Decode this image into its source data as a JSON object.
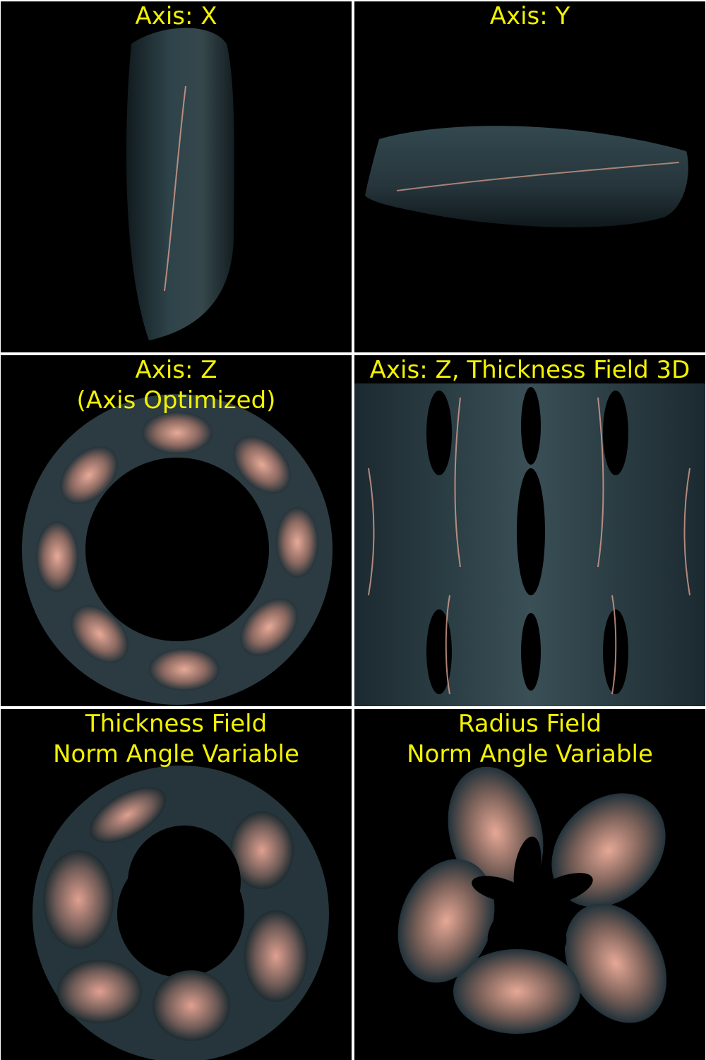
{
  "colors": {
    "background": "#000000",
    "divider": "#ffffff",
    "caption": "#f2f200",
    "surface_dark": "#23333a",
    "surface_light": "#e8aa98"
  },
  "panels": [
    {
      "caption_lines": [
        "Axis: X"
      ]
    },
    {
      "caption_lines": [
        "Axis: Y"
      ]
    },
    {
      "caption_lines": [
        "Axis: Z",
        "(Axis Optimized)"
      ]
    },
    {
      "caption_lines": [
        "Axis: Z, Thickness Field 3D"
      ]
    },
    {
      "caption_lines": [
        "Thickness Field",
        "Norm Angle Variable"
      ]
    },
    {
      "caption_lines": [
        "Radius Field",
        "Norm Angle Variable"
      ]
    }
  ]
}
